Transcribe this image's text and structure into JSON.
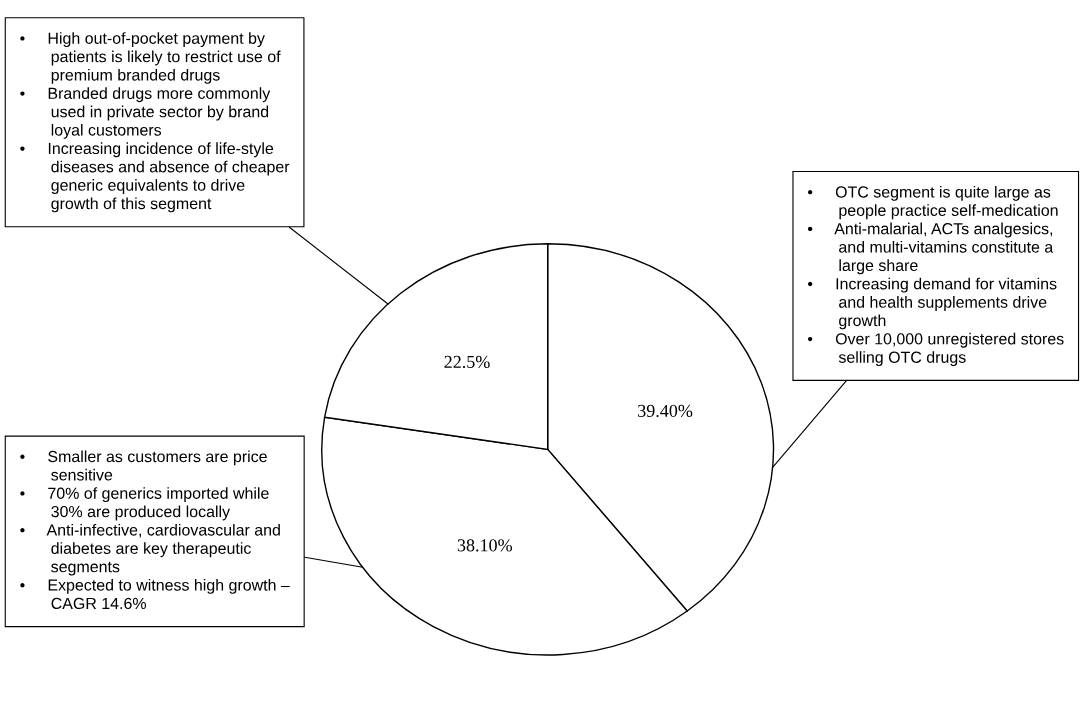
{
  "chart_data": {
    "type": "pie",
    "categories": [
      null,
      null,
      null
    ],
    "values": [
      39.4,
      38.1,
      22.5
    ],
    "colors": [
      "#ffffff",
      "#ffffff",
      "#ffffff"
    ],
    "value_labels": [
      "39.40%",
      "38.10%",
      "22.5%"
    ],
    "legend": false,
    "annotations": [
      "• OTC segment is quite large as\npeople practice self-medication\n• Anti-malarial, ACTs analgesics,\nand multi-vitamins constitute a\nlarge share\n• Increasing demand for vitamins\nand health supplements drive\ngrowth\n• Over 10,000 unregistered stores\nselling OTC drugs",
      "• Smaller as customers are price\nsensitive\n• 70% of generics imported while\n30% are produced locally\n• Anti-infective, cardiovascular and\ndiabetes are key therapeutic\nsegments\n• Expected to witness high growth –\nCAGR 14.6%",
      "• High out-of-pocket payment by\npatients is likely to restrict use of\npremium branded drugs\n• Branded drugs more commonly\nused in private sector by brand\nloyal customers\n• Increasing incidence of life-style\ndiseases and absence of cheaper\ngeneric equivalents to drive\ngrowth of this segment"
    ]
  }
}
